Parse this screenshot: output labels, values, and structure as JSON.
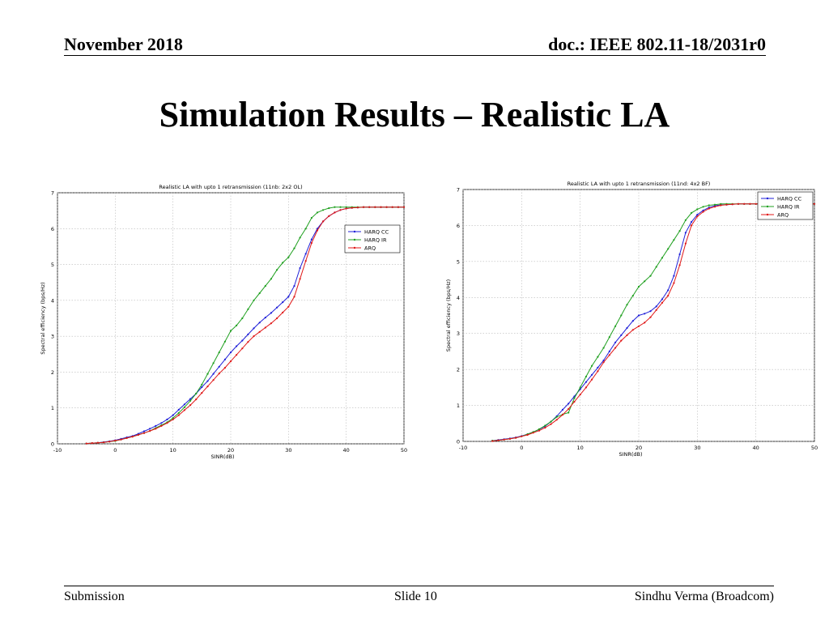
{
  "header": {
    "date": "November 2018",
    "doc": "doc.: IEEE 802.11-18/2031r0"
  },
  "slide_title": "Simulation Results – Realistic LA",
  "footer": {
    "left": "Submission",
    "center": "Slide 10",
    "right": "Sindhu Verma (Broadcom)"
  },
  "colors": {
    "HARQ CC": "#1f1fd8",
    "HARQ IR": "#20a020",
    "ARQ": "#e01818",
    "grid": "#b8b8b8",
    "axis": "#000000"
  },
  "chart_data": [
    {
      "type": "line",
      "title": "Realistic LA with upto 1 retransmission (11nb: 2x2 OL)",
      "xlabel": "SINR(dB)",
      "ylabel": "Spectral efficiency (bps/Hz)",
      "xlim": [
        -10,
        50
      ],
      "ylim": [
        0,
        7
      ],
      "xticks": [
        -10,
        0,
        10,
        20,
        30,
        40,
        50
      ],
      "yticks": [
        0,
        1,
        2,
        3,
        4,
        5,
        6,
        7
      ],
      "grid": true,
      "legend_position": "right",
      "series": [
        {
          "name": "HARQ CC",
          "x": [
            -5,
            -4,
            -3,
            -2,
            -1,
            0,
            1,
            2,
            3,
            4,
            5,
            6,
            7,
            8,
            9,
            10,
            11,
            12,
            13,
            14,
            15,
            16,
            17,
            18,
            19,
            20,
            21,
            22,
            23,
            24,
            25,
            26,
            27,
            28,
            29,
            30,
            31,
            32,
            33,
            34,
            35,
            36,
            37,
            38,
            39,
            40,
            41,
            42,
            43,
            44,
            45,
            46,
            47,
            48,
            49,
            50
          ],
          "y": [
            0.01,
            0.02,
            0.03,
            0.05,
            0.07,
            0.1,
            0.14,
            0.18,
            0.22,
            0.28,
            0.35,
            0.42,
            0.5,
            0.58,
            0.68,
            0.8,
            0.95,
            1.1,
            1.25,
            1.4,
            1.58,
            1.75,
            1.95,
            2.15,
            2.35,
            2.55,
            2.72,
            2.88,
            3.05,
            3.22,
            3.38,
            3.52,
            3.65,
            3.8,
            3.95,
            4.1,
            4.4,
            4.9,
            5.3,
            5.7,
            6.0,
            6.2,
            6.35,
            6.45,
            6.52,
            6.56,
            6.58,
            6.59,
            6.6,
            6.6,
            6.6,
            6.6,
            6.6,
            6.6,
            6.6,
            6.6
          ]
        },
        {
          "name": "HARQ IR",
          "x": [
            -5,
            -4,
            -3,
            -2,
            -1,
            0,
            1,
            2,
            3,
            4,
            5,
            6,
            7,
            8,
            9,
            10,
            11,
            12,
            13,
            14,
            15,
            16,
            17,
            18,
            19,
            20,
            21,
            22,
            23,
            24,
            25,
            26,
            27,
            28,
            29,
            30,
            31,
            32,
            33,
            34,
            35,
            36,
            37,
            38,
            39,
            40,
            41,
            42,
            43,
            44,
            45,
            46,
            47,
            48,
            49,
            50
          ],
          "y": [
            0.01,
            0.02,
            0.03,
            0.04,
            0.06,
            0.08,
            0.12,
            0.16,
            0.2,
            0.25,
            0.3,
            0.36,
            0.44,
            0.52,
            0.6,
            0.72,
            0.86,
            1.02,
            1.2,
            1.4,
            1.65,
            1.95,
            2.25,
            2.55,
            2.85,
            3.15,
            3.3,
            3.5,
            3.75,
            4.0,
            4.2,
            4.4,
            4.6,
            4.85,
            5.05,
            5.2,
            5.45,
            5.75,
            6.0,
            6.3,
            6.45,
            6.52,
            6.57,
            6.6,
            6.6,
            6.6,
            6.6,
            6.6,
            6.6,
            6.6,
            6.6,
            6.6,
            6.6,
            6.6,
            6.6,
            6.6
          ]
        },
        {
          "name": "ARQ",
          "x": [
            -5,
            -4,
            -3,
            -2,
            -1,
            0,
            1,
            2,
            3,
            4,
            5,
            6,
            7,
            8,
            9,
            10,
            11,
            12,
            13,
            14,
            15,
            16,
            17,
            18,
            19,
            20,
            21,
            22,
            23,
            24,
            25,
            26,
            27,
            28,
            29,
            30,
            31,
            32,
            33,
            34,
            35,
            36,
            37,
            38,
            39,
            40,
            41,
            42,
            43,
            44,
            45,
            46,
            47,
            48,
            49,
            50
          ],
          "y": [
            0.01,
            0.02,
            0.03,
            0.04,
            0.06,
            0.09,
            0.12,
            0.16,
            0.2,
            0.25,
            0.3,
            0.36,
            0.42,
            0.5,
            0.58,
            0.68,
            0.8,
            0.94,
            1.08,
            1.24,
            1.42,
            1.6,
            1.78,
            1.96,
            2.12,
            2.3,
            2.48,
            2.66,
            2.84,
            3.0,
            3.12,
            3.24,
            3.36,
            3.5,
            3.66,
            3.82,
            4.1,
            4.6,
            5.1,
            5.6,
            5.95,
            6.2,
            6.35,
            6.45,
            6.52,
            6.56,
            6.58,
            6.59,
            6.6,
            6.6,
            6.6,
            6.6,
            6.6,
            6.6,
            6.6,
            6.6
          ]
        }
      ]
    },
    {
      "type": "line",
      "title": "Realistic LA with upto 1 retransmission (11nd: 4x2 BF)",
      "xlabel": "SINR(dB)",
      "ylabel": "Spectral efficiency (bps/Hz)",
      "xlim": [
        -10,
        50
      ],
      "ylim": [
        0,
        7
      ],
      "xticks": [
        -10,
        0,
        10,
        20,
        30,
        40,
        50
      ],
      "yticks": [
        0,
        1,
        2,
        3,
        4,
        5,
        6,
        7
      ],
      "grid": true,
      "legend_position": "top-right",
      "series": [
        {
          "name": "HARQ CC",
          "x": [
            -5,
            -4,
            -3,
            -2,
            -1,
            0,
            1,
            2,
            3,
            4,
            5,
            6,
            7,
            8,
            9,
            10,
            11,
            12,
            13,
            14,
            15,
            16,
            17,
            18,
            19,
            20,
            21,
            22,
            23,
            24,
            25,
            26,
            27,
            28,
            29,
            30,
            31,
            32,
            33,
            34,
            35,
            36,
            37,
            38,
            39,
            40,
            41,
            42,
            43,
            44,
            45,
            46,
            47,
            48,
            49,
            50
          ],
          "y": [
            0.02,
            0.04,
            0.06,
            0.08,
            0.11,
            0.15,
            0.2,
            0.26,
            0.33,
            0.42,
            0.55,
            0.7,
            0.88,
            1.05,
            1.25,
            1.45,
            1.65,
            1.85,
            2.05,
            2.25,
            2.5,
            2.75,
            2.95,
            3.15,
            3.35,
            3.5,
            3.55,
            3.62,
            3.75,
            3.95,
            4.2,
            4.6,
            5.2,
            5.8,
            6.1,
            6.3,
            6.42,
            6.5,
            6.55,
            6.57,
            6.58,
            6.59,
            6.6,
            6.6,
            6.6,
            6.6,
            6.6,
            6.6,
            6.6,
            6.6,
            6.6,
            6.6,
            6.6,
            6.6,
            6.6,
            6.6
          ]
        },
        {
          "name": "HARQ IR",
          "x": [
            -5,
            -4,
            -3,
            -2,
            -1,
            0,
            1,
            2,
            3,
            4,
            5,
            6,
            7,
            8,
            9,
            10,
            11,
            12,
            13,
            14,
            15,
            16,
            17,
            18,
            19,
            20,
            21,
            22,
            23,
            24,
            25,
            26,
            27,
            28,
            29,
            30,
            31,
            32,
            33,
            34,
            35,
            36,
            37,
            38,
            39,
            40,
            41,
            42,
            43,
            44,
            45,
            46,
            47,
            48,
            49,
            50
          ],
          "y": [
            0.02,
            0.03,
            0.05,
            0.07,
            0.1,
            0.14,
            0.2,
            0.26,
            0.34,
            0.44,
            0.55,
            0.68,
            0.75,
            0.8,
            1.2,
            1.5,
            1.8,
            2.1,
            2.35,
            2.6,
            2.9,
            3.2,
            3.5,
            3.8,
            4.05,
            4.3,
            4.45,
            4.6,
            4.85,
            5.1,
            5.35,
            5.6,
            5.85,
            6.15,
            6.35,
            6.45,
            6.52,
            6.56,
            6.58,
            6.6,
            6.6,
            6.6,
            6.6,
            6.6,
            6.6,
            6.6,
            6.6,
            6.6,
            6.6,
            6.6,
            6.6,
            6.6,
            6.6,
            6.6,
            6.6,
            6.6
          ]
        },
        {
          "name": "ARQ",
          "x": [
            -5,
            -4,
            -3,
            -2,
            -1,
            0,
            1,
            2,
            3,
            4,
            5,
            6,
            7,
            8,
            9,
            10,
            11,
            12,
            13,
            14,
            15,
            16,
            17,
            18,
            19,
            20,
            21,
            22,
            23,
            24,
            25,
            26,
            27,
            28,
            29,
            30,
            31,
            32,
            33,
            34,
            35,
            36,
            37,
            38,
            39,
            40,
            41,
            42,
            43,
            44,
            45,
            46,
            47,
            48,
            49,
            50
          ],
          "y": [
            0.01,
            0.03,
            0.05,
            0.07,
            0.1,
            0.14,
            0.18,
            0.24,
            0.3,
            0.38,
            0.48,
            0.6,
            0.74,
            0.9,
            1.1,
            1.3,
            1.5,
            1.72,
            1.95,
            2.2,
            2.4,
            2.6,
            2.8,
            2.95,
            3.1,
            3.2,
            3.3,
            3.45,
            3.65,
            3.85,
            4.05,
            4.4,
            4.9,
            5.5,
            6.0,
            6.25,
            6.38,
            6.47,
            6.52,
            6.56,
            6.58,
            6.59,
            6.6,
            6.6,
            6.6,
            6.6,
            6.6,
            6.6,
            6.6,
            6.6,
            6.6,
            6.6,
            6.6,
            6.6,
            6.6,
            6.6
          ]
        }
      ]
    }
  ]
}
